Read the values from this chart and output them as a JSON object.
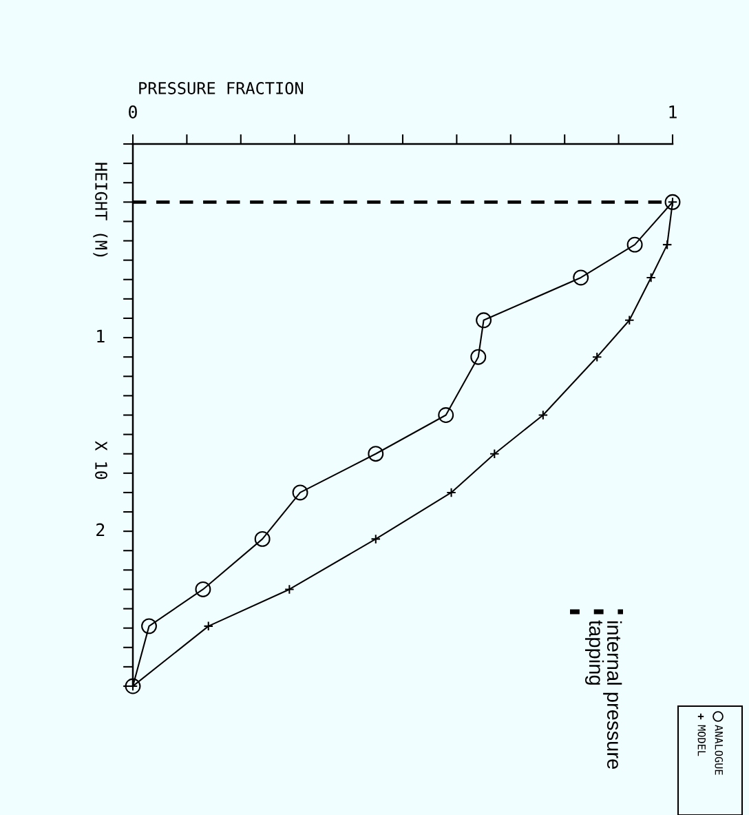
{
  "chart_data": {
    "type": "line",
    "xlabel": "PRESSURE FRACTION",
    "ylabel": "HEIGHT (M)",
    "annotations": [
      "X 10"
    ],
    "series": [
      {
        "name": "ANALOGUE",
        "color": "#000000",
        "marker": "circle",
        "x": [
          1.0,
          0.93,
          0.83,
          0.65,
          0.64,
          0.58,
          0.45,
          0.31,
          0.24,
          0.13,
          0.03,
          0.0
        ],
        "values": [
          0.3,
          0.52,
          0.69,
          0.91,
          1.1,
          1.4,
          1.6,
          1.8,
          2.04,
          2.3,
          2.49,
          2.8
        ]
      },
      {
        "name": "MODEL",
        "color": "#000000",
        "marker": "cross",
        "x": [
          1.0,
          0.99,
          0.96,
          0.92,
          0.86,
          0.76,
          0.67,
          0.59,
          0.45,
          0.29,
          0.14,
          0.0
        ],
        "values": [
          0.3,
          0.52,
          0.69,
          0.91,
          1.1,
          1.4,
          1.6,
          1.8,
          2.04,
          2.3,
          2.49,
          2.8
        ]
      }
    ],
    "ylim": [
      2.8,
      0
    ],
    "yticks": [
      {
        "value": 0,
        "label": null
      },
      {
        "value": 0.1,
        "label": null
      },
      {
        "value": 0.2,
        "label": null
      },
      {
        "value": 0.3,
        "label": null
      },
      {
        "value": 0.4,
        "label": null
      },
      {
        "value": 0.5,
        "label": null
      },
      {
        "value": 0.6,
        "label": null
      },
      {
        "value": 0.7,
        "label": null
      },
      {
        "value": 0.8,
        "label": null
      },
      {
        "value": 0.9,
        "label": null
      },
      1,
      {
        "value": 1.1,
        "label": null
      },
      {
        "value": 1.2,
        "label": null
      },
      {
        "value": 1.3,
        "label": null
      },
      {
        "value": 1.4,
        "label": null
      },
      {
        "value": 1.5,
        "label": null
      },
      {
        "value": 1.6,
        "label": null
      },
      {
        "value": 1.7,
        "label": null
      },
      {
        "value": 1.8,
        "label": null
      },
      {
        "value": 1.9,
        "label": null
      },
      2,
      {
        "value": 2.1,
        "label": null
      },
      {
        "value": 2.2,
        "label": null
      },
      {
        "value": 2.3,
        "label": null
      },
      {
        "value": 2.4,
        "label": null
      },
      {
        "value": 2.5,
        "label": null
      },
      {
        "value": 2.6,
        "label": null
      },
      {
        "value": 2.7,
        "label": null
      },
      {
        "value": 2.8,
        "label": null
      }
    ],
    "xlim": [
      0,
      1
    ],
    "xticks": [
      0,
      {
        "value": 0.1,
        "label": null
      },
      {
        "value": 0.2,
        "label": null
      },
      {
        "value": 0.3,
        "label": null
      },
      {
        "value": 0.4,
        "label": null
      },
      {
        "value": 0.5,
        "label": null
      },
      {
        "value": 0.6,
        "label": null
      },
      {
        "value": 0.7,
        "label": null
      },
      {
        "value": 0.8,
        "label": null
      },
      {
        "value": 0.9,
        "label": null
      },
      1
    ],
    "ref_lines": [
      {
        "axis": "y",
        "value": 0.3,
        "label": "internal pressure\ntapping",
        "line_style": "dashed",
        "color": "#000000"
      }
    ],
    "legend": "bottom right",
    "grid": false,
    "line_style": "solid"
  }
}
